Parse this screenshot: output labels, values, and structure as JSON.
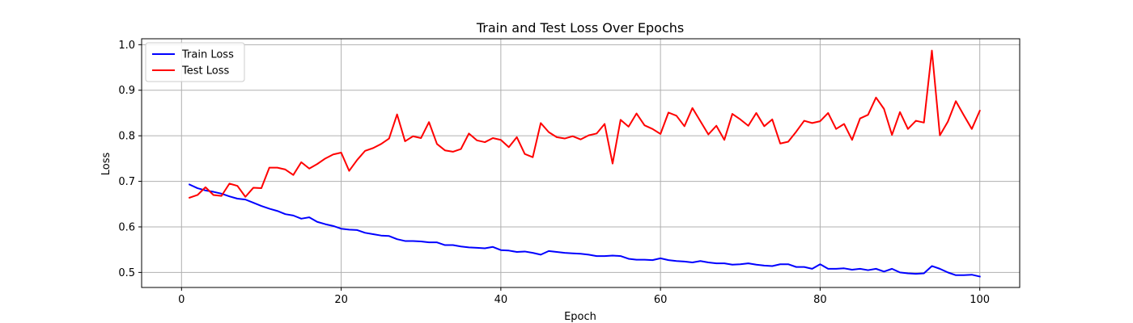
{
  "chart_data": {
    "type": "line",
    "title": "Train and Test Loss Over Epochs",
    "xlabel": "Epoch",
    "ylabel": "Loss",
    "xlim": [
      -5,
      105
    ],
    "ylim": [
      0.467,
      1.013
    ],
    "xticks": [
      0,
      20,
      40,
      60,
      80,
      100
    ],
    "yticks": [
      0.5,
      0.6,
      0.7,
      0.8,
      0.9,
      1.0
    ],
    "xtick_labels": [
      "0",
      "20",
      "40",
      "60",
      "80",
      "100"
    ],
    "ytick_labels": [
      "0.5",
      "0.6",
      "0.7",
      "0.8",
      "0.9",
      "1.0"
    ],
    "grid": true,
    "legend_position": "top-left",
    "x": [
      1,
      2,
      3,
      4,
      5,
      6,
      7,
      8,
      9,
      10,
      11,
      12,
      13,
      14,
      15,
      16,
      17,
      18,
      19,
      20,
      21,
      22,
      23,
      24,
      25,
      26,
      27,
      28,
      29,
      30,
      31,
      32,
      33,
      34,
      35,
      36,
      37,
      38,
      39,
      40,
      41,
      42,
      43,
      44,
      45,
      46,
      47,
      48,
      49,
      50,
      51,
      52,
      53,
      54,
      55,
      56,
      57,
      58,
      59,
      60,
      61,
      62,
      63,
      64,
      65,
      66,
      67,
      68,
      69,
      70,
      71,
      72,
      73,
      74,
      75,
      76,
      77,
      78,
      79,
      80,
      81,
      82,
      83,
      84,
      85,
      86,
      87,
      88,
      89,
      90,
      91,
      92,
      93,
      94,
      95,
      96,
      97,
      98,
      99,
      100
    ],
    "series": [
      {
        "name": "Train Loss",
        "color": "#0000ff",
        "values": [
          0.693,
          0.685,
          0.68,
          0.677,
          0.673,
          0.667,
          0.662,
          0.66,
          0.653,
          0.646,
          0.64,
          0.635,
          0.628,
          0.625,
          0.618,
          0.621,
          0.611,
          0.606,
          0.602,
          0.596,
          0.594,
          0.593,
          0.587,
          0.584,
          0.581,
          0.58,
          0.573,
          0.569,
          0.569,
          0.568,
          0.566,
          0.566,
          0.56,
          0.56,
          0.557,
          0.555,
          0.554,
          0.553,
          0.556,
          0.549,
          0.548,
          0.545,
          0.546,
          0.543,
          0.539,
          0.547,
          0.545,
          0.543,
          0.542,
          0.541,
          0.539,
          0.536,
          0.536,
          0.537,
          0.536,
          0.53,
          0.528,
          0.528,
          0.527,
          0.531,
          0.527,
          0.525,
          0.524,
          0.522,
          0.525,
          0.522,
          0.52,
          0.52,
          0.517,
          0.518,
          0.52,
          0.517,
          0.515,
          0.514,
          0.518,
          0.518,
          0.512,
          0.512,
          0.508,
          0.518,
          0.508,
          0.508,
          0.509,
          0.506,
          0.508,
          0.505,
          0.508,
          0.502,
          0.508,
          0.5,
          0.498,
          0.497,
          0.498,
          0.514,
          0.508,
          0.5,
          0.494,
          0.494,
          0.495,
          0.491
        ]
      },
      {
        "name": "Test Loss",
        "color": "#ff0000",
        "values": [
          0.664,
          0.67,
          0.687,
          0.67,
          0.668,
          0.695,
          0.69,
          0.666,
          0.686,
          0.685,
          0.73,
          0.73,
          0.726,
          0.714,
          0.742,
          0.728,
          0.738,
          0.75,
          0.759,
          0.763,
          0.723,
          0.747,
          0.767,
          0.773,
          0.782,
          0.794,
          0.847,
          0.788,
          0.799,
          0.795,
          0.83,
          0.782,
          0.768,
          0.765,
          0.771,
          0.805,
          0.79,
          0.786,
          0.795,
          0.791,
          0.775,
          0.797,
          0.76,
          0.753,
          0.828,
          0.808,
          0.797,
          0.794,
          0.799,
          0.792,
          0.801,
          0.805,
          0.826,
          0.739,
          0.835,
          0.82,
          0.849,
          0.823,
          0.815,
          0.804,
          0.851,
          0.844,
          0.821,
          0.861,
          0.832,
          0.803,
          0.822,
          0.791,
          0.848,
          0.836,
          0.822,
          0.85,
          0.821,
          0.836,
          0.783,
          0.787,
          0.809,
          0.833,
          0.828,
          0.832,
          0.85,
          0.815,
          0.826,
          0.791,
          0.838,
          0.846,
          0.884,
          0.859,
          0.802,
          0.852,
          0.815,
          0.833,
          0.829,
          0.987,
          0.801,
          0.831,
          0.876,
          0.845,
          0.815,
          0.855
        ]
      }
    ]
  }
}
